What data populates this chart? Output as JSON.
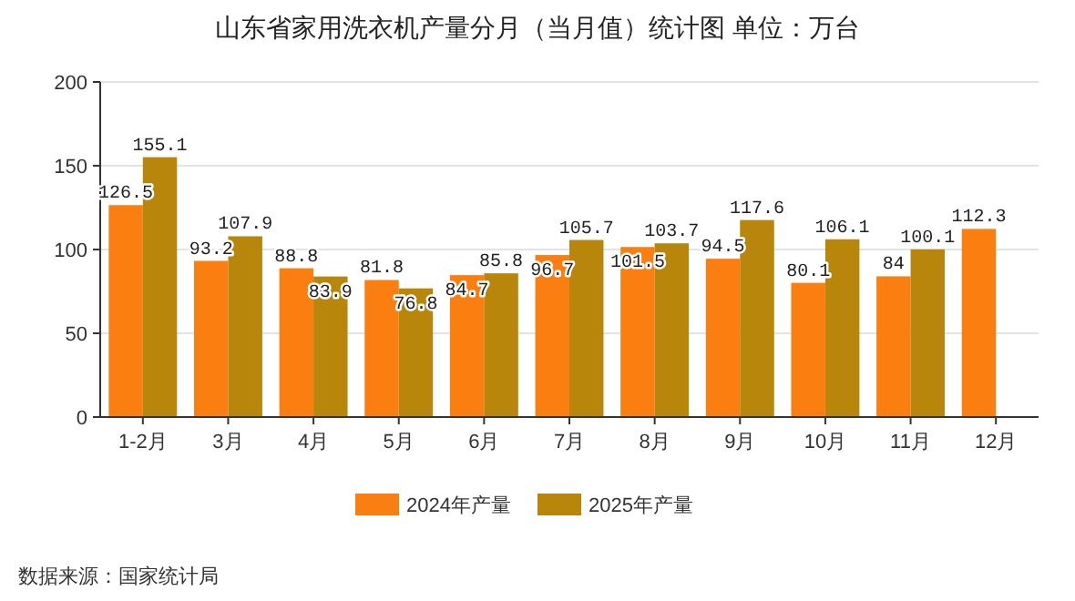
{
  "chart_data": {
    "type": "bar",
    "title": "山东省家用洗衣机产量分月（当月值）统计图  单位：万台",
    "categories": [
      "1-2月",
      "3月",
      "4月",
      "5月",
      "6月",
      "7月",
      "8月",
      "9月",
      "10月",
      "11月",
      "12月"
    ],
    "series": [
      {
        "name": "2024年产量",
        "color": "#fb7e10",
        "values": [
          126.5,
          93.2,
          88.8,
          81.8,
          84.7,
          96.7,
          101.5,
          94.5,
          80.1,
          84,
          112.3
        ]
      },
      {
        "name": "2025年产量",
        "color": "#b8860b",
        "values": [
          155.1,
          107.9,
          83.9,
          76.8,
          85.8,
          105.7,
          103.7,
          117.6,
          106.1,
          100.1,
          null
        ]
      }
    ],
    "ylim": [
      0,
      200
    ],
    "yticks": [
      0,
      50,
      100,
      150,
      200
    ],
    "grid": "y",
    "legend": "bottom",
    "data_labels": true,
    "annotations": [
      "数据来源：国家统计局"
    ]
  }
}
